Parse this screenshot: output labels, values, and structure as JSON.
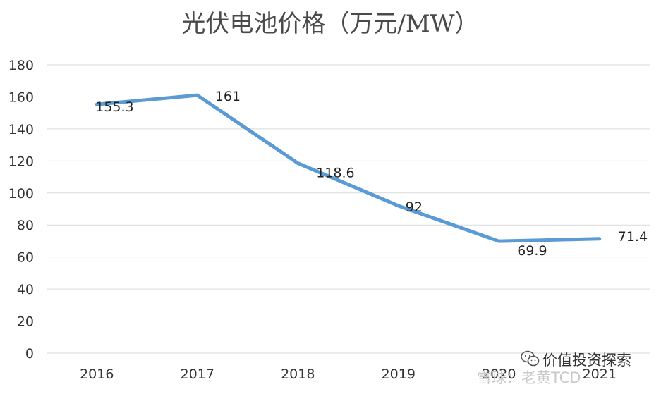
{
  "chart_data": {
    "type": "line",
    "title": "光伏电池价格（万元/MW）",
    "categories": [
      "2016",
      "2017",
      "2018",
      "2019",
      "2020",
      "2021"
    ],
    "series": [
      {
        "values": [
          155.3,
          161,
          118.6,
          92,
          69.9,
          71.4
        ]
      }
    ],
    "data_labels": [
      "155.3",
      "161",
      "118.6",
      "92",
      "69.9",
      "71.4"
    ],
    "ylim": [
      0,
      180
    ],
    "yticks": [
      0,
      20,
      40,
      60,
      80,
      100,
      120,
      140,
      160,
      180
    ],
    "grid": true,
    "legend": "none",
    "line_color": "#5B9BD5"
  },
  "watermark": {
    "text": "价值投资探索",
    "faint_text": "雪球：老黄TCD",
    "icon": "wechat-icon"
  }
}
